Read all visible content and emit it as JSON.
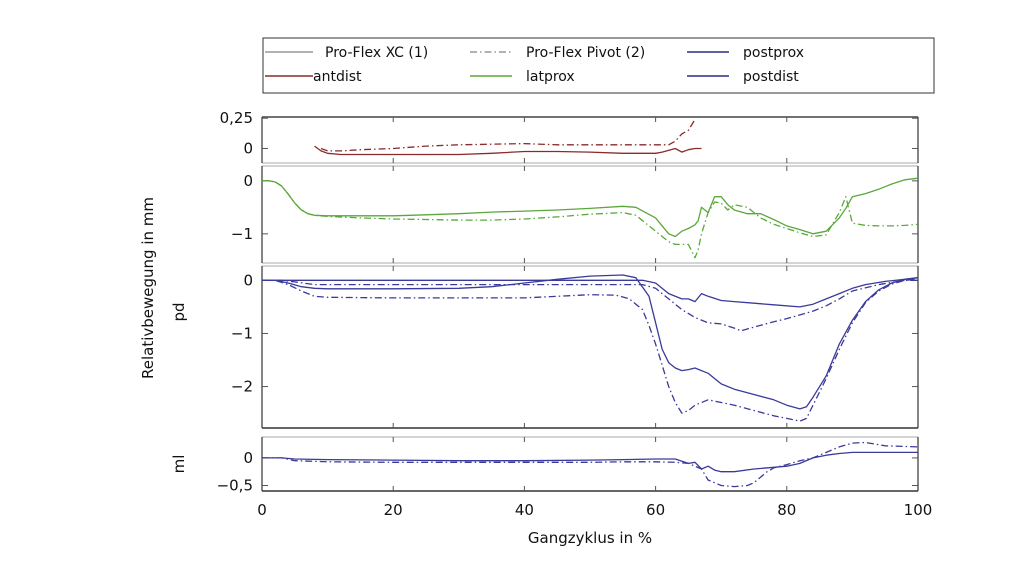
{
  "chart_data": {
    "type": "line",
    "xlabel": "Gangzyklus in %",
    "ylabel": "Relativbewegung in mm",
    "xlim": [
      0,
      100
    ],
    "x_ticks": [
      "0",
      "20",
      "40",
      "60",
      "80",
      "100"
    ],
    "legend": {
      "placement": "top",
      "entries": [
        {
          "label": "Pro-Flex XC (1)",
          "style": "solid",
          "color": "#999999"
        },
        {
          "label": "Pro-Flex Pivot (2)",
          "style": "dashdot",
          "color": "#999999"
        },
        {
          "label": "postprox",
          "style": "solid",
          "color": "#2b2b8a"
        },
        {
          "label": "antdist",
          "style": "solid",
          "color": "#8b2a2a"
        },
        {
          "label": "latprox",
          "style": "solid",
          "color": "#5aa83c"
        },
        {
          "label": "postdist",
          "style": "solid",
          "color": "#2b2b8a"
        }
      ]
    },
    "panels": [
      {
        "name": "antdist",
        "ylabel": "",
        "ylim": [
          -0.12,
          0.26
        ],
        "y_ticks": [
          {
            "v": 0.25,
            "label": "0,25"
          },
          {
            "v": 0,
            "label": "0"
          }
        ],
        "series": [
          {
            "name": "antdist XC (1)",
            "style": "solid",
            "color": "#8b2a2a",
            "x": [
              8,
              9,
              10,
              12,
              15,
              20,
              25,
              30,
              35,
              40,
              45,
              50,
              55,
              60,
              61,
              63,
              64,
              65,
              66,
              67
            ],
            "y": [
              0.02,
              -0.02,
              -0.04,
              -0.05,
              -0.05,
              -0.05,
              -0.05,
              -0.05,
              -0.04,
              -0.025,
              -0.025,
              -0.03,
              -0.04,
              -0.04,
              -0.03,
              0.0,
              -0.03,
              -0.01,
              0.0,
              0.0
            ]
          },
          {
            "name": "antdist Pivot (2)",
            "style": "dashdot",
            "color": "#8b2a2a",
            "x": [
              9,
              10,
              12,
              15,
              20,
              25,
              30,
              35,
              40,
              45,
              50,
              55,
              60,
              62,
              63,
              64,
              65,
              66
            ],
            "y": [
              -0.0,
              -0.02,
              -0.02,
              -0.01,
              0.0,
              0.02,
              0.03,
              0.035,
              0.04,
              0.03,
              0.03,
              0.03,
              0.03,
              0.03,
              0.06,
              0.12,
              0.15,
              0.24
            ]
          }
        ]
      },
      {
        "name": "latprox",
        "ylabel": "",
        "ylim": [
          -1.55,
          0.28
        ],
        "y_ticks": [
          {
            "v": 0,
            "label": "0"
          },
          {
            "v": -1,
            "label": "−1"
          }
        ],
        "series": [
          {
            "name": "latprox XC (1)",
            "style": "solid",
            "color": "#5aa83c",
            "x": [
              0,
              1,
              2,
              3,
              4,
              5,
              6,
              7,
              8,
              10,
              15,
              20,
              25,
              30,
              35,
              40,
              45,
              50,
              55,
              57,
              60,
              62,
              63,
              64,
              65,
              66,
              66.5,
              67,
              68,
              69,
              70,
              71,
              72,
              74,
              76,
              78,
              80,
              82,
              84,
              86,
              88,
              89,
              90,
              92,
              94,
              96,
              98,
              100
            ],
            "y": [
              0,
              0,
              -0.02,
              -0.1,
              -0.25,
              -0.42,
              -0.55,
              -0.62,
              -0.65,
              -0.66,
              -0.66,
              -0.66,
              -0.64,
              -0.62,
              -0.59,
              -0.57,
              -0.55,
              -0.52,
              -0.48,
              -0.5,
              -0.7,
              -1.0,
              -1.05,
              -0.95,
              -0.9,
              -0.83,
              -0.75,
              -0.5,
              -0.6,
              -0.3,
              -0.3,
              -0.45,
              -0.55,
              -0.62,
              -0.62,
              -0.73,
              -0.85,
              -0.92,
              -1.0,
              -0.95,
              -0.7,
              -0.52,
              -0.3,
              -0.24,
              -0.16,
              -0.06,
              0.02,
              0.05
            ]
          },
          {
            "name": "latprox Pivot (2)",
            "style": "dashdot",
            "color": "#5aa83c",
            "x": [
              0,
              1,
              2,
              3,
              4,
              5,
              6,
              7,
              8,
              10,
              15,
              20,
              25,
              30,
              35,
              40,
              45,
              50,
              55,
              57,
              60,
              62,
              63,
              65,
              66,
              66.5,
              67,
              68,
              69,
              70,
              71,
              72,
              74,
              76,
              78,
              80,
              82,
              84,
              86,
              88,
              89,
              90,
              92,
              94,
              96,
              98,
              100
            ],
            "y": [
              0,
              0,
              -0.02,
              -0.1,
              -0.25,
              -0.42,
              -0.55,
              -0.62,
              -0.65,
              -0.67,
              -0.7,
              -0.72,
              -0.73,
              -0.74,
              -0.74,
              -0.72,
              -0.68,
              -0.63,
              -0.6,
              -0.65,
              -0.95,
              -1.15,
              -1.2,
              -1.2,
              -1.45,
              -1.3,
              -1.0,
              -0.6,
              -0.4,
              -0.42,
              -0.55,
              -0.45,
              -0.5,
              -0.7,
              -0.82,
              -0.9,
              -0.98,
              -1.05,
              -1.02,
              -0.6,
              -0.3,
              -0.8,
              -0.84,
              -0.85,
              -0.85,
              -0.84,
              -0.82
            ]
          }
        ]
      },
      {
        "name": "pd",
        "ylabel": "pd",
        "ylim": [
          -2.78,
          0.27
        ],
        "y_ticks": [
          {
            "v": 0,
            "label": "0"
          },
          {
            "v": -1,
            "label": "−1"
          },
          {
            "v": -2,
            "label": "−2"
          }
        ],
        "series": [
          {
            "name": "postprox XC (1)",
            "style": "solid",
            "color": "#3a3a9a",
            "x": [
              0,
              5,
              10,
              20,
              30,
              40,
              50,
              55,
              58,
              60,
              62,
              64,
              65,
              66,
              67,
              68,
              70,
              72,
              75,
              78,
              82,
              84,
              86,
              88,
              90,
              92,
              95,
              98,
              100
            ],
            "y": [
              0,
              0,
              0,
              0,
              0,
              0,
              0,
              0,
              0,
              -0.05,
              -0.25,
              -0.35,
              -0.35,
              -0.4,
              -0.25,
              -0.3,
              -0.38,
              -0.4,
              -0.43,
              -0.46,
              -0.5,
              -0.45,
              -0.35,
              -0.25,
              -0.15,
              -0.08,
              -0.02,
              0.02,
              0.05
            ]
          },
          {
            "name": "postprox Pivot (2)",
            "style": "dashdot",
            "color": "#3a3a9a",
            "x": [
              0,
              3,
              5,
              8,
              10,
              20,
              30,
              40,
              50,
              55,
              58,
              60,
              62,
              64,
              66,
              68,
              70,
              72,
              73,
              75,
              78,
              80,
              82,
              84,
              86,
              88,
              90,
              94,
              98,
              100
            ],
            "y": [
              0,
              0,
              -0.03,
              -0.08,
              -0.08,
              -0.08,
              -0.08,
              -0.08,
              -0.08,
              -0.08,
              -0.08,
              -0.15,
              -0.35,
              -0.55,
              -0.7,
              -0.8,
              -0.82,
              -0.9,
              -0.95,
              -0.88,
              -0.78,
              -0.72,
              -0.65,
              -0.58,
              -0.48,
              -0.35,
              -0.2,
              -0.08,
              0.0,
              0.02
            ]
          },
          {
            "name": "postdist XC (1)",
            "style": "solid",
            "color": "#3a3a9a",
            "x": [
              0,
              2,
              4,
              6,
              8,
              10,
              20,
              30,
              35,
              40,
              45,
              50,
              55,
              57,
              59,
              60,
              61,
              62,
              63,
              64,
              65,
              66,
              68,
              70,
              72,
              75,
              78,
              80,
              82,
              83,
              84,
              86,
              88,
              90,
              92,
              94,
              96,
              98,
              100
            ],
            "y": [
              0,
              0,
              -0.05,
              -0.12,
              -0.15,
              -0.16,
              -0.16,
              -0.15,
              -0.12,
              -0.05,
              0.02,
              0.08,
              0.1,
              0.05,
              -0.3,
              -0.8,
              -1.3,
              -1.55,
              -1.65,
              -1.7,
              -1.68,
              -1.65,
              -1.75,
              -1.95,
              -2.05,
              -2.15,
              -2.25,
              -2.35,
              -2.42,
              -2.38,
              -2.2,
              -1.8,
              -1.2,
              -0.75,
              -0.4,
              -0.18,
              -0.05,
              0.02,
              0.05
            ]
          },
          {
            "name": "postdist Pivot (2)",
            "style": "dashdot",
            "color": "#3a3a9a",
            "x": [
              0,
              2,
              4,
              6,
              8,
              10,
              20,
              30,
              40,
              45,
              50,
              54,
              56,
              58,
              59,
              60,
              61,
              62,
              63,
              64,
              65,
              66,
              68,
              70,
              72,
              75,
              78,
              80,
              82,
              83,
              84,
              86,
              88,
              90,
              92,
              94,
              96,
              98,
              100
            ],
            "y": [
              0,
              0,
              -0.08,
              -0.2,
              -0.3,
              -0.32,
              -0.33,
              -0.33,
              -0.33,
              -0.3,
              -0.27,
              -0.28,
              -0.35,
              -0.55,
              -0.85,
              -1.2,
              -1.6,
              -2.0,
              -2.3,
              -2.5,
              -2.45,
              -2.35,
              -2.25,
              -2.3,
              -2.35,
              -2.45,
              -2.55,
              -2.6,
              -2.65,
              -2.6,
              -2.35,
              -1.85,
              -1.3,
              -0.8,
              -0.42,
              -0.2,
              -0.07,
              0.0,
              0.0
            ]
          }
        ]
      },
      {
        "name": "ml",
        "ylabel": "ml",
        "ylim": [
          -0.6,
          0.38
        ],
        "y_ticks": [
          {
            "v": 0,
            "label": "0"
          },
          {
            "v": -0.5,
            "label": "−0,5"
          }
        ],
        "series": [
          {
            "name": "ml XC (1)",
            "style": "solid",
            "color": "#3a3a9a",
            "x": [
              0,
              3,
              5,
              10,
              20,
              30,
              40,
              50,
              55,
              60,
              63,
              65,
              66,
              67,
              68,
              69,
              70,
              72,
              75,
              78,
              80,
              82,
              84,
              86,
              88,
              90,
              95,
              100
            ],
            "y": [
              0,
              0,
              -0.02,
              -0.03,
              -0.04,
              -0.05,
              -0.05,
              -0.04,
              -0.03,
              -0.02,
              -0.02,
              -0.1,
              -0.08,
              -0.2,
              -0.15,
              -0.22,
              -0.25,
              -0.25,
              -0.2,
              -0.17,
              -0.15,
              -0.1,
              0.0,
              0.05,
              0.08,
              0.1,
              0.1,
              0.1
            ]
          },
          {
            "name": "ml Pivot (2)",
            "style": "dashdot",
            "color": "#3a3a9a",
            "x": [
              0,
              3,
              5,
              10,
              20,
              30,
              40,
              50,
              55,
              60,
              63,
              65,
              66,
              67,
              68,
              70,
              72,
              74,
              75,
              77,
              78,
              80,
              82,
              84,
              86,
              88,
              90,
              92,
              95,
              100
            ],
            "y": [
              0,
              0,
              -0.05,
              -0.07,
              -0.08,
              -0.08,
              -0.08,
              -0.08,
              -0.07,
              -0.07,
              -0.08,
              -0.1,
              -0.15,
              -0.2,
              -0.4,
              -0.5,
              -0.52,
              -0.5,
              -0.45,
              -0.25,
              -0.18,
              -0.12,
              -0.05,
              0.0,
              0.1,
              0.2,
              0.27,
              0.28,
              0.22,
              0.2
            ]
          }
        ]
      }
    ]
  }
}
